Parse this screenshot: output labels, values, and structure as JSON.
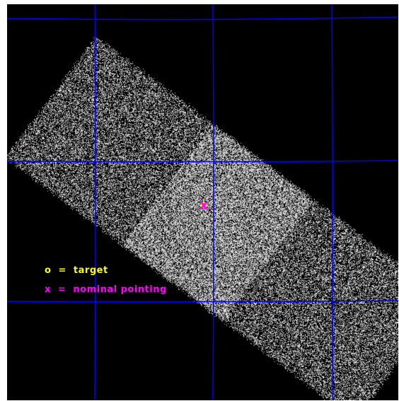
{
  "image": {
    "background_color": "#000000",
    "grid_color": "#0000ff",
    "detector_dot_color": "#d8d8d8",
    "overlap_region_color": "#c8c8c8",
    "layout": "X-ray image with rotated detector footprint, coordinate grid lines, and marker legend"
  },
  "markers": {
    "target_symbol": "o",
    "target_color": "#ffff00",
    "nominal_symbol": "x",
    "nominal_color": "#ff00ff"
  },
  "legend": {
    "target_text": "o  =  target",
    "target_color": "#ffff00",
    "nominal_text": "x  =  nominal pointing",
    "nominal_color": "#ff00ff"
  }
}
